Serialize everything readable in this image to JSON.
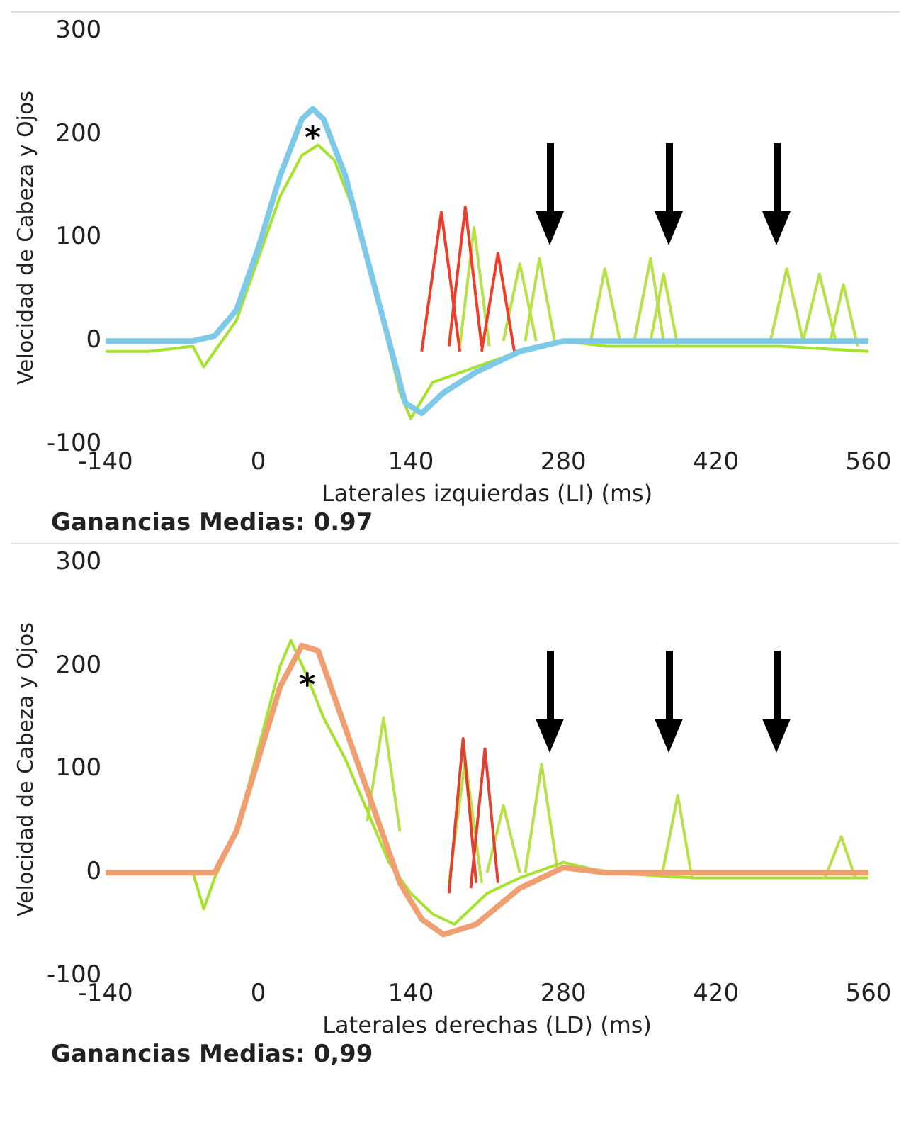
{
  "chart_data": [
    {
      "type": "line",
      "xlabel": "Laterales izquierdas (LI) (ms)",
      "ylabel": "Velocidad de Cabeza y Ojos",
      "xlim": [
        -140,
        560
      ],
      "ylim": [
        -100,
        300
      ],
      "xticks": [
        -140,
        0,
        140,
        280,
        420,
        560
      ],
      "yticks": [
        -100,
        0,
        100,
        200,
        300
      ],
      "grid": false,
      "legend": false,
      "marker": "none",
      "line_style": "solid",
      "annotations": [
        {
          "text": "*",
          "x": 50,
          "y": 195
        },
        "Ganancias Medias: 0.97"
      ],
      "series": [
        {
          "color": "#7ec8e8",
          "x": [
            -140,
            -60,
            -40,
            -20,
            0,
            20,
            40,
            50,
            60,
            80,
            100,
            120,
            135,
            150,
            170,
            200,
            240,
            280,
            560
          ],
          "values": [
            0,
            0,
            5,
            30,
            90,
            160,
            215,
            225,
            215,
            160,
            80,
            0,
            -60,
            -70,
            -50,
            -30,
            -10,
            0,
            0
          ]
        },
        {
          "color": "#a6e22e",
          "x": [
            -140,
            -100,
            -60,
            -50,
            -40,
            -20,
            0,
            20,
            40,
            55,
            70,
            90,
            110,
            130,
            140,
            160,
            200,
            240,
            280,
            320,
            400,
            480,
            560
          ],
          "values": [
            -10,
            -10,
            -5,
            -25,
            -10,
            20,
            80,
            140,
            180,
            190,
            175,
            120,
            40,
            -50,
            -75,
            -40,
            -25,
            -10,
            0,
            -5,
            -5,
            -5,
            -10
          ]
        },
        {
          "color": "#f03c28",
          "x": [
            150,
            168,
            185
          ],
          "values": [
            -10,
            125,
            -10
          ]
        },
        {
          "color": "#f03c28",
          "x": [
            175,
            190,
            205
          ],
          "values": [
            -5,
            130,
            -5
          ]
        },
        {
          "color": "#f03c28",
          "x": [
            205,
            220,
            235
          ],
          "values": [
            -10,
            85,
            -10
          ]
        },
        {
          "color": "#b8e04a",
          "x": [
            185,
            198,
            212
          ],
          "values": [
            -5,
            110,
            -5
          ]
        },
        {
          "color": "#b8e04a",
          "x": [
            225,
            240,
            255
          ],
          "values": [
            0,
            75,
            0
          ]
        },
        {
          "color": "#b8e04a",
          "x": [
            245,
            258,
            272
          ],
          "values": [
            0,
            80,
            0
          ]
        },
        {
          "color": "#b8e04a",
          "x": [
            305,
            318,
            332
          ],
          "values": [
            0,
            70,
            0
          ]
        },
        {
          "color": "#b8e04a",
          "x": [
            345,
            360,
            372
          ],
          "values": [
            0,
            80,
            0
          ]
        },
        {
          "color": "#b8e04a",
          "x": [
            360,
            372,
            385
          ],
          "values": [
            0,
            65,
            -5
          ]
        },
        {
          "color": "#b8e04a",
          "x": [
            470,
            485,
            500
          ],
          "values": [
            0,
            70,
            0
          ]
        },
        {
          "color": "#b8e04a",
          "x": [
            500,
            515,
            530
          ],
          "values": [
            0,
            65,
            0
          ]
        },
        {
          "color": "#b8e04a",
          "x": [
            525,
            537,
            550
          ],
          "values": [
            0,
            55,
            -5
          ]
        }
      ]
    },
    {
      "type": "line",
      "xlabel": "Laterales derechas (LD) (ms)",
      "ylabel": "Velocidad de Cabeza y Ojos",
      "xlim": [
        -140,
        560
      ],
      "ylim": [
        -100,
        300
      ],
      "xticks": [
        -140,
        0,
        140,
        280,
        420,
        560
      ],
      "yticks": [
        -100,
        0,
        100,
        200,
        300
      ],
      "grid": false,
      "legend": false,
      "marker": "none",
      "line_style": "solid",
      "annotations": [
        {
          "text": "*",
          "x": 45,
          "y": 180
        },
        "Ganancias Medias: 0,99"
      ],
      "series": [
        {
          "color": "#f0a070",
          "x": [
            -140,
            -40,
            -20,
            0,
            20,
            40,
            55,
            70,
            90,
            110,
            130,
            150,
            170,
            200,
            240,
            280,
            320,
            560
          ],
          "values": [
            0,
            0,
            40,
            110,
            180,
            220,
            215,
            170,
            110,
            50,
            -10,
            -45,
            -60,
            -50,
            -15,
            5,
            0,
            0
          ]
        },
        {
          "color": "#a6e22e",
          "x": [
            -140,
            -60,
            -50,
            -40,
            -20,
            0,
            20,
            30,
            45,
            60,
            80,
            100,
            120,
            140,
            160,
            180,
            210,
            240,
            280,
            320,
            400,
            560
          ],
          "values": [
            0,
            0,
            -35,
            -5,
            40,
            120,
            200,
            225,
            190,
            150,
            110,
            60,
            10,
            -20,
            -40,
            -50,
            -20,
            -5,
            10,
            0,
            -5,
            -5
          ]
        },
        {
          "color": "#e04030",
          "x": [
            175,
            188,
            200
          ],
          "values": [
            -20,
            130,
            -10
          ]
        },
        {
          "color": "#e04030",
          "x": [
            195,
            208,
            220
          ],
          "values": [
            -15,
            120,
            -10
          ]
        },
        {
          "color": "#b8e04a",
          "x": [
            100,
            115,
            130
          ],
          "values": [
            50,
            150,
            40
          ]
        },
        {
          "color": "#b8e04a",
          "x": [
            175,
            190,
            205
          ],
          "values": [
            -10,
            110,
            -10
          ]
        },
        {
          "color": "#b8e04a",
          "x": [
            210,
            225,
            240
          ],
          "values": [
            0,
            65,
            0
          ]
        },
        {
          "color": "#b8e04a",
          "x": [
            245,
            260,
            275
          ],
          "values": [
            0,
            105,
            0
          ]
        },
        {
          "color": "#b8e04a",
          "x": [
            370,
            385,
            398
          ],
          "values": [
            -5,
            75,
            -5
          ]
        },
        {
          "color": "#b8e04a",
          "x": [
            520,
            535,
            548
          ],
          "values": [
            -5,
            35,
            -5
          ]
        }
      ]
    }
  ]
}
